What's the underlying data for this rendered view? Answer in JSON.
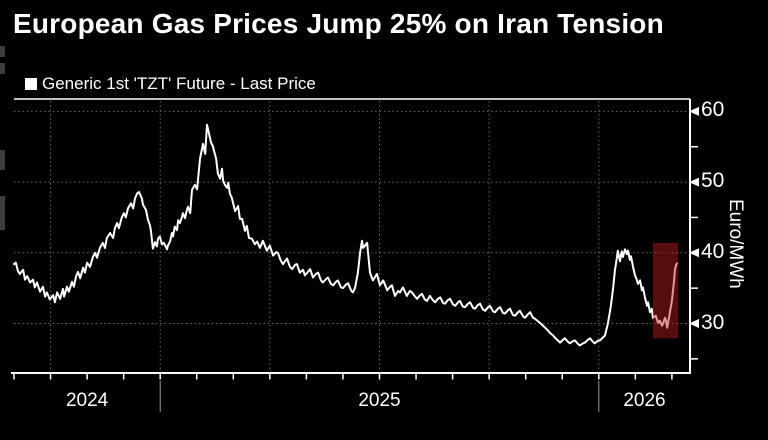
{
  "header": {
    "title": "European Gas Prices Jump 25% on Iran Tension"
  },
  "legend": {
    "marker": "square",
    "marker_color": "#ffffff",
    "label": "Generic 1st 'TZT' Future - Last Price"
  },
  "y_axis": {
    "unit": "Euro/MWh",
    "major_ticks": [
      {
        "label": "60",
        "value": 60
      },
      {
        "label": "50",
        "value": 50
      },
      {
        "label": "40",
        "value": 40
      },
      {
        "label": "30",
        "value": 30
      }
    ],
    "minor_tick_values": [
      55,
      45,
      35,
      25
    ]
  },
  "x_axis": {
    "years": [
      {
        "label": "2024",
        "center_month": 2
      },
      {
        "label": "2025",
        "center_month": 10
      },
      {
        "label": "2026",
        "center_month": 17.25
      }
    ],
    "quarter_grid_months": [
      1,
      4,
      7,
      10,
      13,
      16
    ],
    "year_separator_months": [
      4,
      16
    ],
    "month_tick_start": 0,
    "month_tick_end": 18
  },
  "colors": {
    "background": "#000000",
    "line": "#ffffff",
    "axis": "#ffffff",
    "gridline": "#6a6a6a",
    "year_separator": "#999999",
    "highlight_fill": "rgba(190,28,30,0.45)",
    "text": "#ffffff"
  },
  "chart_data": {
    "type": "line",
    "title": "European Gas Prices Jump 25% on Iran Tension",
    "series_name": "Generic 1st 'TZT' Future - Last Price",
    "ylabel": "Euro/MWh",
    "x_start_date": "2024-09-01",
    "x_unit": "months_since_start",
    "xlim_months": [
      0,
      18.5
    ],
    "ylim": [
      23,
      61.8
    ],
    "grid": "dotted",
    "legend_position": "top-left",
    "highlight_box": {
      "m_start": 17.48,
      "m_end": 18.17,
      "v_min": 27.9,
      "v_max": 41.4,
      "meaning": "final price jump highlight"
    },
    "points": [
      [
        0.0,
        38.4
      ],
      [
        0.05,
        38.6
      ],
      [
        0.11,
        37.4
      ],
      [
        0.16,
        37.0
      ],
      [
        0.25,
        37.6
      ],
      [
        0.3,
        36.2
      ],
      [
        0.36,
        36.7
      ],
      [
        0.44,
        35.8
      ],
      [
        0.52,
        36.2
      ],
      [
        0.57,
        35.1
      ],
      [
        0.63,
        35.8
      ],
      [
        0.71,
        34.5
      ],
      [
        0.79,
        35.2
      ],
      [
        0.85,
        33.8
      ],
      [
        0.9,
        34.4
      ],
      [
        0.98,
        33.4
      ],
      [
        1.07,
        34.0
      ],
      [
        1.12,
        33.0
      ],
      [
        1.18,
        34.4
      ],
      [
        1.26,
        33.5
      ],
      [
        1.34,
        34.9
      ],
      [
        1.37,
        33.8
      ],
      [
        1.45,
        35.2
      ],
      [
        1.5,
        34.5
      ],
      [
        1.59,
        35.9
      ],
      [
        1.64,
        35.2
      ],
      [
        1.7,
        36.7
      ],
      [
        1.75,
        37.3
      ],
      [
        1.81,
        36.4
      ],
      [
        1.89,
        37.9
      ],
      [
        1.94,
        37.2
      ],
      [
        2.0,
        38.6
      ],
      [
        2.08,
        38.0
      ],
      [
        2.16,
        39.4
      ],
      [
        2.22,
        40.0
      ],
      [
        2.27,
        39.3
      ],
      [
        2.35,
        40.7
      ],
      [
        2.43,
        41.4
      ],
      [
        2.49,
        40.7
      ],
      [
        2.54,
        42.1
      ],
      [
        2.63,
        42.8
      ],
      [
        2.71,
        42.1
      ],
      [
        2.76,
        43.5
      ],
      [
        2.82,
        44.2
      ],
      [
        2.87,
        43.5
      ],
      [
        2.95,
        45.0
      ],
      [
        3.01,
        45.6
      ],
      [
        3.06,
        45.0
      ],
      [
        3.12,
        46.3
      ],
      [
        3.2,
        47.0
      ],
      [
        3.26,
        46.3
      ],
      [
        3.31,
        47.7
      ],
      [
        3.37,
        48.4
      ],
      [
        3.42,
        48.6
      ],
      [
        3.5,
        47.7
      ],
      [
        3.53,
        46.8
      ],
      [
        3.61,
        46.1
      ],
      [
        3.67,
        44.6
      ],
      [
        3.72,
        43.9
      ],
      [
        3.75,
        42.9
      ],
      [
        3.8,
        40.6
      ],
      [
        3.86,
        41.5
      ],
      [
        3.91,
        40.9
      ],
      [
        3.94,
        42.0
      ],
      [
        3.99,
        42.3
      ],
      [
        4.05,
        41.2
      ],
      [
        4.1,
        41.4
      ],
      [
        4.19,
        40.5
      ],
      [
        4.21,
        41.0
      ],
      [
        4.27,
        41.6
      ],
      [
        4.32,
        42.8
      ],
      [
        4.35,
        42.3
      ],
      [
        4.4,
        43.7
      ],
      [
        4.46,
        43.2
      ],
      [
        4.49,
        44.6
      ],
      [
        4.54,
        44.2
      ],
      [
        4.6,
        45.1
      ],
      [
        4.62,
        45.6
      ],
      [
        4.68,
        44.9
      ],
      [
        4.73,
        46.1
      ],
      [
        4.76,
        46.5
      ],
      [
        4.82,
        45.6
      ],
      [
        4.87,
        48.9
      ],
      [
        4.95,
        49.6
      ],
      [
        5.01,
        49.0
      ],
      [
        5.09,
        53.3
      ],
      [
        5.17,
        55.4
      ],
      [
        5.23,
        54.0
      ],
      [
        5.28,
        58.1
      ],
      [
        5.33,
        57.0
      ],
      [
        5.39,
        55.6
      ],
      [
        5.44,
        55.1
      ],
      [
        5.53,
        53.3
      ],
      [
        5.58,
        51.2
      ],
      [
        5.64,
        50.5
      ],
      [
        5.69,
        51.9
      ],
      [
        5.72,
        50.2
      ],
      [
        5.77,
        49.6
      ],
      [
        5.83,
        49.2
      ],
      [
        5.86,
        49.9
      ],
      [
        5.91,
        48.3
      ],
      [
        5.96,
        47.8
      ],
      [
        6.05,
        45.9
      ],
      [
        6.13,
        46.6
      ],
      [
        6.18,
        44.8
      ],
      [
        6.24,
        44.8
      ],
      [
        6.32,
        43.1
      ],
      [
        6.37,
        43.8
      ],
      [
        6.43,
        42.1
      ],
      [
        6.51,
        42.0
      ],
      [
        6.59,
        41.2
      ],
      [
        6.65,
        41.6
      ],
      [
        6.73,
        40.7
      ],
      [
        6.81,
        41.7
      ],
      [
        6.87,
        40.9
      ],
      [
        6.92,
        40.3
      ],
      [
        7.0,
        41.0
      ],
      [
        7.09,
        39.6
      ],
      [
        7.17,
        40.1
      ],
      [
        7.22,
        40.0
      ],
      [
        7.3,
        38.9
      ],
      [
        7.36,
        38.4
      ],
      [
        7.47,
        39.2
      ],
      [
        7.55,
        38.0
      ],
      [
        7.61,
        37.7
      ],
      [
        7.69,
        38.3
      ],
      [
        7.74,
        38.4
      ],
      [
        7.82,
        37.2
      ],
      [
        7.91,
        37.6
      ],
      [
        7.96,
        36.8
      ],
      [
        8.04,
        37.3
      ],
      [
        8.1,
        37.7
      ],
      [
        8.18,
        36.5
      ],
      [
        8.26,
        37.0
      ],
      [
        8.32,
        37.2
      ],
      [
        8.4,
        36.1
      ],
      [
        8.45,
        35.8
      ],
      [
        8.54,
        36.3
      ],
      [
        8.59,
        36.5
      ],
      [
        8.67,
        35.6
      ],
      [
        8.73,
        35.4
      ],
      [
        8.81,
        35.9
      ],
      [
        8.86,
        36.1
      ],
      [
        8.95,
        35.1
      ],
      [
        9.0,
        35.0
      ],
      [
        9.08,
        35.5
      ],
      [
        9.14,
        35.7
      ],
      [
        9.22,
        34.7
      ],
      [
        9.27,
        34.4
      ],
      [
        9.33,
        35.0
      ],
      [
        9.41,
        37.2
      ],
      [
        9.47,
        40.0
      ],
      [
        9.52,
        41.7
      ],
      [
        9.55,
        40.7
      ],
      [
        9.6,
        41.0
      ],
      [
        9.66,
        41.4
      ],
      [
        9.74,
        37.2
      ],
      [
        9.82,
        36.1
      ],
      [
        9.93,
        37.0
      ],
      [
        10.01,
        35.4
      ],
      [
        10.1,
        36.1
      ],
      [
        10.21,
        34.7
      ],
      [
        10.29,
        35.2
      ],
      [
        10.34,
        35.4
      ],
      [
        10.42,
        33.9
      ],
      [
        10.51,
        34.6
      ],
      [
        10.56,
        34.4
      ],
      [
        10.64,
        35.1
      ],
      [
        10.75,
        33.9
      ],
      [
        10.83,
        34.6
      ],
      [
        10.89,
        34.4
      ],
      [
        10.97,
        33.8
      ],
      [
        11.03,
        33.5
      ],
      [
        11.11,
        34.0
      ],
      [
        11.16,
        34.2
      ],
      [
        11.24,
        33.4
      ],
      [
        11.3,
        33.2
      ],
      [
        11.38,
        33.9
      ],
      [
        11.46,
        33.3
      ],
      [
        11.52,
        33.0
      ],
      [
        11.6,
        33.5
      ],
      [
        11.66,
        33.7
      ],
      [
        11.74,
        32.9
      ],
      [
        11.79,
        32.8
      ],
      [
        11.87,
        33.3
      ],
      [
        11.93,
        33.5
      ],
      [
        12.01,
        32.7
      ],
      [
        12.07,
        32.5
      ],
      [
        12.15,
        33.0
      ],
      [
        12.2,
        33.2
      ],
      [
        12.28,
        32.4
      ],
      [
        12.34,
        32.3
      ],
      [
        12.42,
        32.8
      ],
      [
        12.48,
        33.0
      ],
      [
        12.56,
        32.2
      ],
      [
        12.61,
        32.1
      ],
      [
        12.69,
        32.6
      ],
      [
        12.75,
        32.8
      ],
      [
        12.83,
        32.0
      ],
      [
        12.89,
        31.8
      ],
      [
        12.97,
        32.3
      ],
      [
        13.02,
        32.5
      ],
      [
        13.11,
        31.7
      ],
      [
        13.16,
        31.6
      ],
      [
        13.24,
        32.1
      ],
      [
        13.3,
        32.3
      ],
      [
        13.38,
        31.5
      ],
      [
        13.43,
        31.4
      ],
      [
        13.52,
        31.9
      ],
      [
        13.57,
        32.1
      ],
      [
        13.65,
        31.2
      ],
      [
        13.71,
        31.1
      ],
      [
        13.79,
        31.6
      ],
      [
        13.84,
        31.8
      ],
      [
        13.93,
        31.0
      ],
      [
        13.98,
        30.8
      ],
      [
        14.06,
        31.3
      ],
      [
        14.12,
        31.6
      ],
      [
        14.2,
        30.8
      ],
      [
        14.25,
        30.7
      ],
      [
        14.34,
        30.3
      ],
      [
        14.39,
        30.1
      ],
      [
        14.47,
        29.7
      ],
      [
        14.53,
        29.4
      ],
      [
        14.61,
        29.0
      ],
      [
        14.66,
        28.7
      ],
      [
        14.75,
        28.3
      ],
      [
        14.8,
        28.0
      ],
      [
        14.88,
        27.6
      ],
      [
        14.94,
        27.3
      ],
      [
        15.02,
        27.7
      ],
      [
        15.07,
        27.9
      ],
      [
        15.16,
        27.4
      ],
      [
        15.21,
        27.2
      ],
      [
        15.29,
        27.5
      ],
      [
        15.35,
        27.6
      ],
      [
        15.43,
        27.1
      ],
      [
        15.48,
        26.9
      ],
      [
        15.57,
        27.2
      ],
      [
        15.62,
        27.3
      ],
      [
        15.7,
        27.7
      ],
      [
        15.76,
        27.9
      ],
      [
        15.84,
        27.4
      ],
      [
        15.89,
        27.2
      ],
      [
        15.98,
        27.6
      ],
      [
        16.03,
        27.6
      ],
      [
        16.11,
        28.0
      ],
      [
        16.17,
        28.3
      ],
      [
        16.25,
        30.0
      ],
      [
        16.33,
        32.5
      ],
      [
        16.39,
        35.0
      ],
      [
        16.44,
        37.5
      ],
      [
        16.5,
        39.5
      ],
      [
        16.52,
        40.3
      ],
      [
        16.55,
        39.5
      ],
      [
        16.58,
        38.8
      ],
      [
        16.61,
        39.8
      ],
      [
        16.63,
        40.2
      ],
      [
        16.66,
        39.4
      ],
      [
        16.69,
        40.0
      ],
      [
        16.72,
        40.5
      ],
      [
        16.77,
        39.8
      ],
      [
        16.8,
        40.3
      ],
      [
        16.85,
        39.0
      ],
      [
        16.88,
        39.5
      ],
      [
        16.94,
        37.9
      ],
      [
        16.99,
        36.8
      ],
      [
        17.04,
        36.2
      ],
      [
        17.07,
        35.6
      ],
      [
        17.13,
        36.1
      ],
      [
        17.18,
        34.7
      ],
      [
        17.21,
        35.1
      ],
      [
        17.26,
        33.7
      ],
      [
        17.32,
        32.5
      ],
      [
        17.35,
        33.0
      ],
      [
        17.4,
        31.6
      ],
      [
        17.45,
        32.1
      ],
      [
        17.48,
        30.8
      ],
      [
        17.56,
        31.1
      ],
      [
        17.62,
        30.1
      ],
      [
        17.67,
        30.4
      ],
      [
        17.73,
        29.7
      ],
      [
        17.76,
        30.0
      ],
      [
        17.81,
        30.8
      ],
      [
        17.84,
        30.4
      ],
      [
        17.87,
        29.4
      ],
      [
        17.89,
        30.0
      ],
      [
        17.92,
        30.8
      ],
      [
        17.95,
        31.8
      ],
      [
        17.97,
        32.3
      ],
      [
        18.0,
        33.2
      ],
      [
        18.03,
        34.7
      ],
      [
        18.06,
        36.1
      ],
      [
        18.08,
        37.5
      ],
      [
        18.11,
        38.2
      ],
      [
        18.14,
        38.5
      ]
    ]
  }
}
